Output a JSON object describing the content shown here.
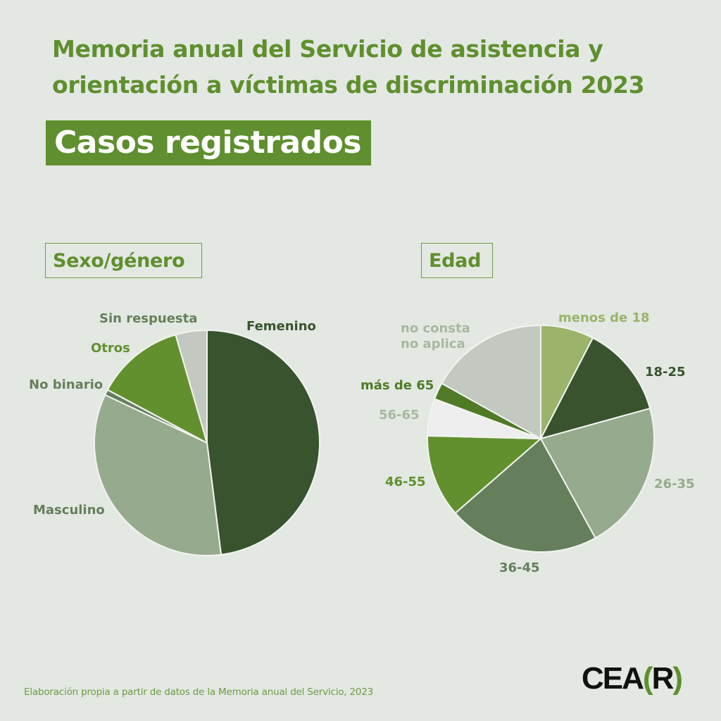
{
  "header": {
    "title_line1": "Memoria anual del Servicio de asistencia y",
    "title_line2": "orientación a víctimas de discriminación 2023",
    "banner": "Casos registrados"
  },
  "sections": {
    "sexo": "Sexo/género",
    "edad": "Edad"
  },
  "colors": {
    "background": "#e3e8e2",
    "accent": "#5f8f2e",
    "dark_green": "#38532e",
    "sage": "#96aa8d",
    "mid_green": "#657f5c",
    "bright_green": "#62902f",
    "light_green": "#9bb36b",
    "grey": "#c3c9c1",
    "white_slice": "#eeeeee"
  },
  "chart_data": [
    {
      "type": "pie",
      "title": "Sexo/género",
      "categories": [
        "Femenino",
        "Masculino",
        "No binario",
        "Otros",
        "Sin respuesta"
      ],
      "values": [
        48,
        34,
        0.8,
        12.7,
        4.5
      ],
      "unit": "% (estimated from slice angles)",
      "colors": [
        "#38532e",
        "#96aa8d",
        "#657f5c",
        "#62902f",
        "#c3c9c1"
      ],
      "label_colors": [
        "#38532e",
        "#657f5c",
        "#657f5c",
        "#62902f",
        "#657f5c"
      ],
      "start_angle_deg": 0,
      "direction": "clockwise",
      "legend": "none (direct labels)"
    },
    {
      "type": "pie",
      "title": "Edad",
      "categories": [
        "menos de 18",
        "18-25",
        "26-35",
        "36-45",
        "46-55",
        "56-65",
        "más de 65",
        "no consta no aplica"
      ],
      "values": [
        7.6,
        13.1,
        21.3,
        21.6,
        11.8,
        5.3,
        2.4,
        16.9
      ],
      "unit": "% (estimated from slice angles)",
      "colors": [
        "#9bb36b",
        "#38532e",
        "#96aa8d",
        "#657f5c",
        "#62902f",
        "#eeeeee",
        "#4f7a26",
        "#c3c9c1"
      ],
      "label_colors": [
        "#9bb36b",
        "#38532e",
        "#96aa8d",
        "#657f5c",
        "#62902f",
        "#a8b8a0",
        "#4f7a26",
        "#a8b8a0"
      ],
      "start_angle_deg": 0,
      "direction": "clockwise",
      "legend": "none (direct labels)"
    }
  ],
  "labels": {
    "sexo": {
      "femenino": "Femenino",
      "masculino": "Masculino",
      "no_binario": "No binario",
      "otros": "Otros",
      "sin_respuesta": "Sin respuesta"
    },
    "edad": {
      "menos18": "menos de 18",
      "e18_25": "18-25",
      "e26_35": "26-35",
      "e36_45": "36-45",
      "e46_55": "46-55",
      "e56_65": "56-65",
      "mas65": "más de 65",
      "no_consta": "no consta",
      "no_aplica": "no aplica"
    }
  },
  "footer": {
    "source": "Elaboración propia a partir de datos de la Memoria anual del Servicio, 2023",
    "logo_text_1": "CEA",
    "logo_bracket_open": "(",
    "logo_letter": "R",
    "logo_bracket_close": ")"
  }
}
